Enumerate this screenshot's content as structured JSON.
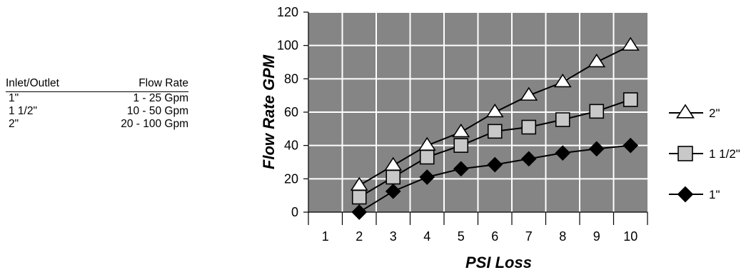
{
  "spec_table": {
    "headers": [
      "Inlet/Outlet",
      "Flow Rate"
    ],
    "rows": [
      [
        "1\"",
        "1 - 25 Gpm"
      ],
      [
        "1 1/2\"",
        "10 - 50 Gpm"
      ],
      [
        "2\"",
        "20 - 100 Gpm"
      ]
    ]
  },
  "chart_data": {
    "type": "line",
    "xlabel": "PSI Loss",
    "ylabel": "Flow Rate GPM",
    "x_ticks": [
      1,
      2,
      3,
      4,
      5,
      6,
      7,
      8,
      9,
      10
    ],
    "y_ticks": [
      0,
      20,
      40,
      60,
      80,
      100,
      120
    ],
    "xlim": [
      0.5,
      10.5
    ],
    "ylim": [
      0,
      120
    ],
    "grid": true,
    "plot_background": "#858585",
    "legend_placement": "right",
    "series": [
      {
        "name": "2\"",
        "marker": "triangle",
        "fill": "#ffffff",
        "x": [
          2,
          3,
          4,
          5,
          6,
          7,
          8,
          9,
          10
        ],
        "y": [
          16,
          28,
          40,
          48,
          60,
          70,
          78,
          90,
          100
        ]
      },
      {
        "name": "1 1/2\"",
        "marker": "square",
        "fill": "#c8c8c8",
        "x": [
          2,
          3,
          4,
          5,
          6,
          7,
          8,
          9,
          10
        ],
        "y": [
          9,
          21,
          33,
          40,
          48.5,
          51,
          55.5,
          60.5,
          67.5
        ]
      },
      {
        "name": "1\"",
        "marker": "diamond",
        "fill": "#000000",
        "x": [
          2,
          3,
          4,
          5,
          6,
          7,
          8,
          9,
          10
        ],
        "y": [
          0,
          12.5,
          21,
          26,
          28.5,
          32,
          35.5,
          38,
          40
        ]
      }
    ]
  }
}
